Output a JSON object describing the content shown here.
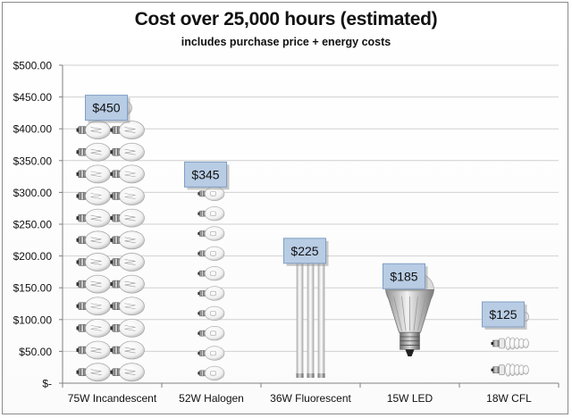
{
  "chart_data": {
    "type": "bar",
    "title": "Cost over 25,000 hours (estimated)",
    "subtitle": "includes purchase price + energy costs",
    "xlabel": "",
    "ylabel": "",
    "ylim": [
      0,
      500
    ],
    "y_ticks": [
      0,
      50,
      100,
      150,
      200,
      250,
      300,
      350,
      400,
      450,
      500
    ],
    "y_tick_labels": [
      "$-",
      "$50.00",
      "$100.00",
      "$150.00",
      "$200.00",
      "$250.00",
      "$300.00",
      "$350.00",
      "$400.00",
      "$450.00",
      "$500.00"
    ],
    "grid": true,
    "legend": "none",
    "categories": [
      "75W Incandescent",
      "52W Halogen",
      "36W Fluorescent",
      "15W LED",
      "18W CFL"
    ],
    "values": [
      450,
      345,
      225,
      185,
      125
    ],
    "data_labels": [
      "$450",
      "$345",
      "$225",
      "$185",
      "$125"
    ],
    "bar_style": "pictograph",
    "pictograph_icons": [
      "incandescent-bulb-icon",
      "halogen-bulb-icon",
      "fluorescent-tube-icon",
      "led-bulb-icon",
      "cfl-bulb-icon"
    ],
    "colors": {
      "label_box_fill": "#b8cce4",
      "label_box_border": "#7f9fc4",
      "gridline": "#d0d0d0",
      "axis": "#7f7f7f"
    }
  }
}
